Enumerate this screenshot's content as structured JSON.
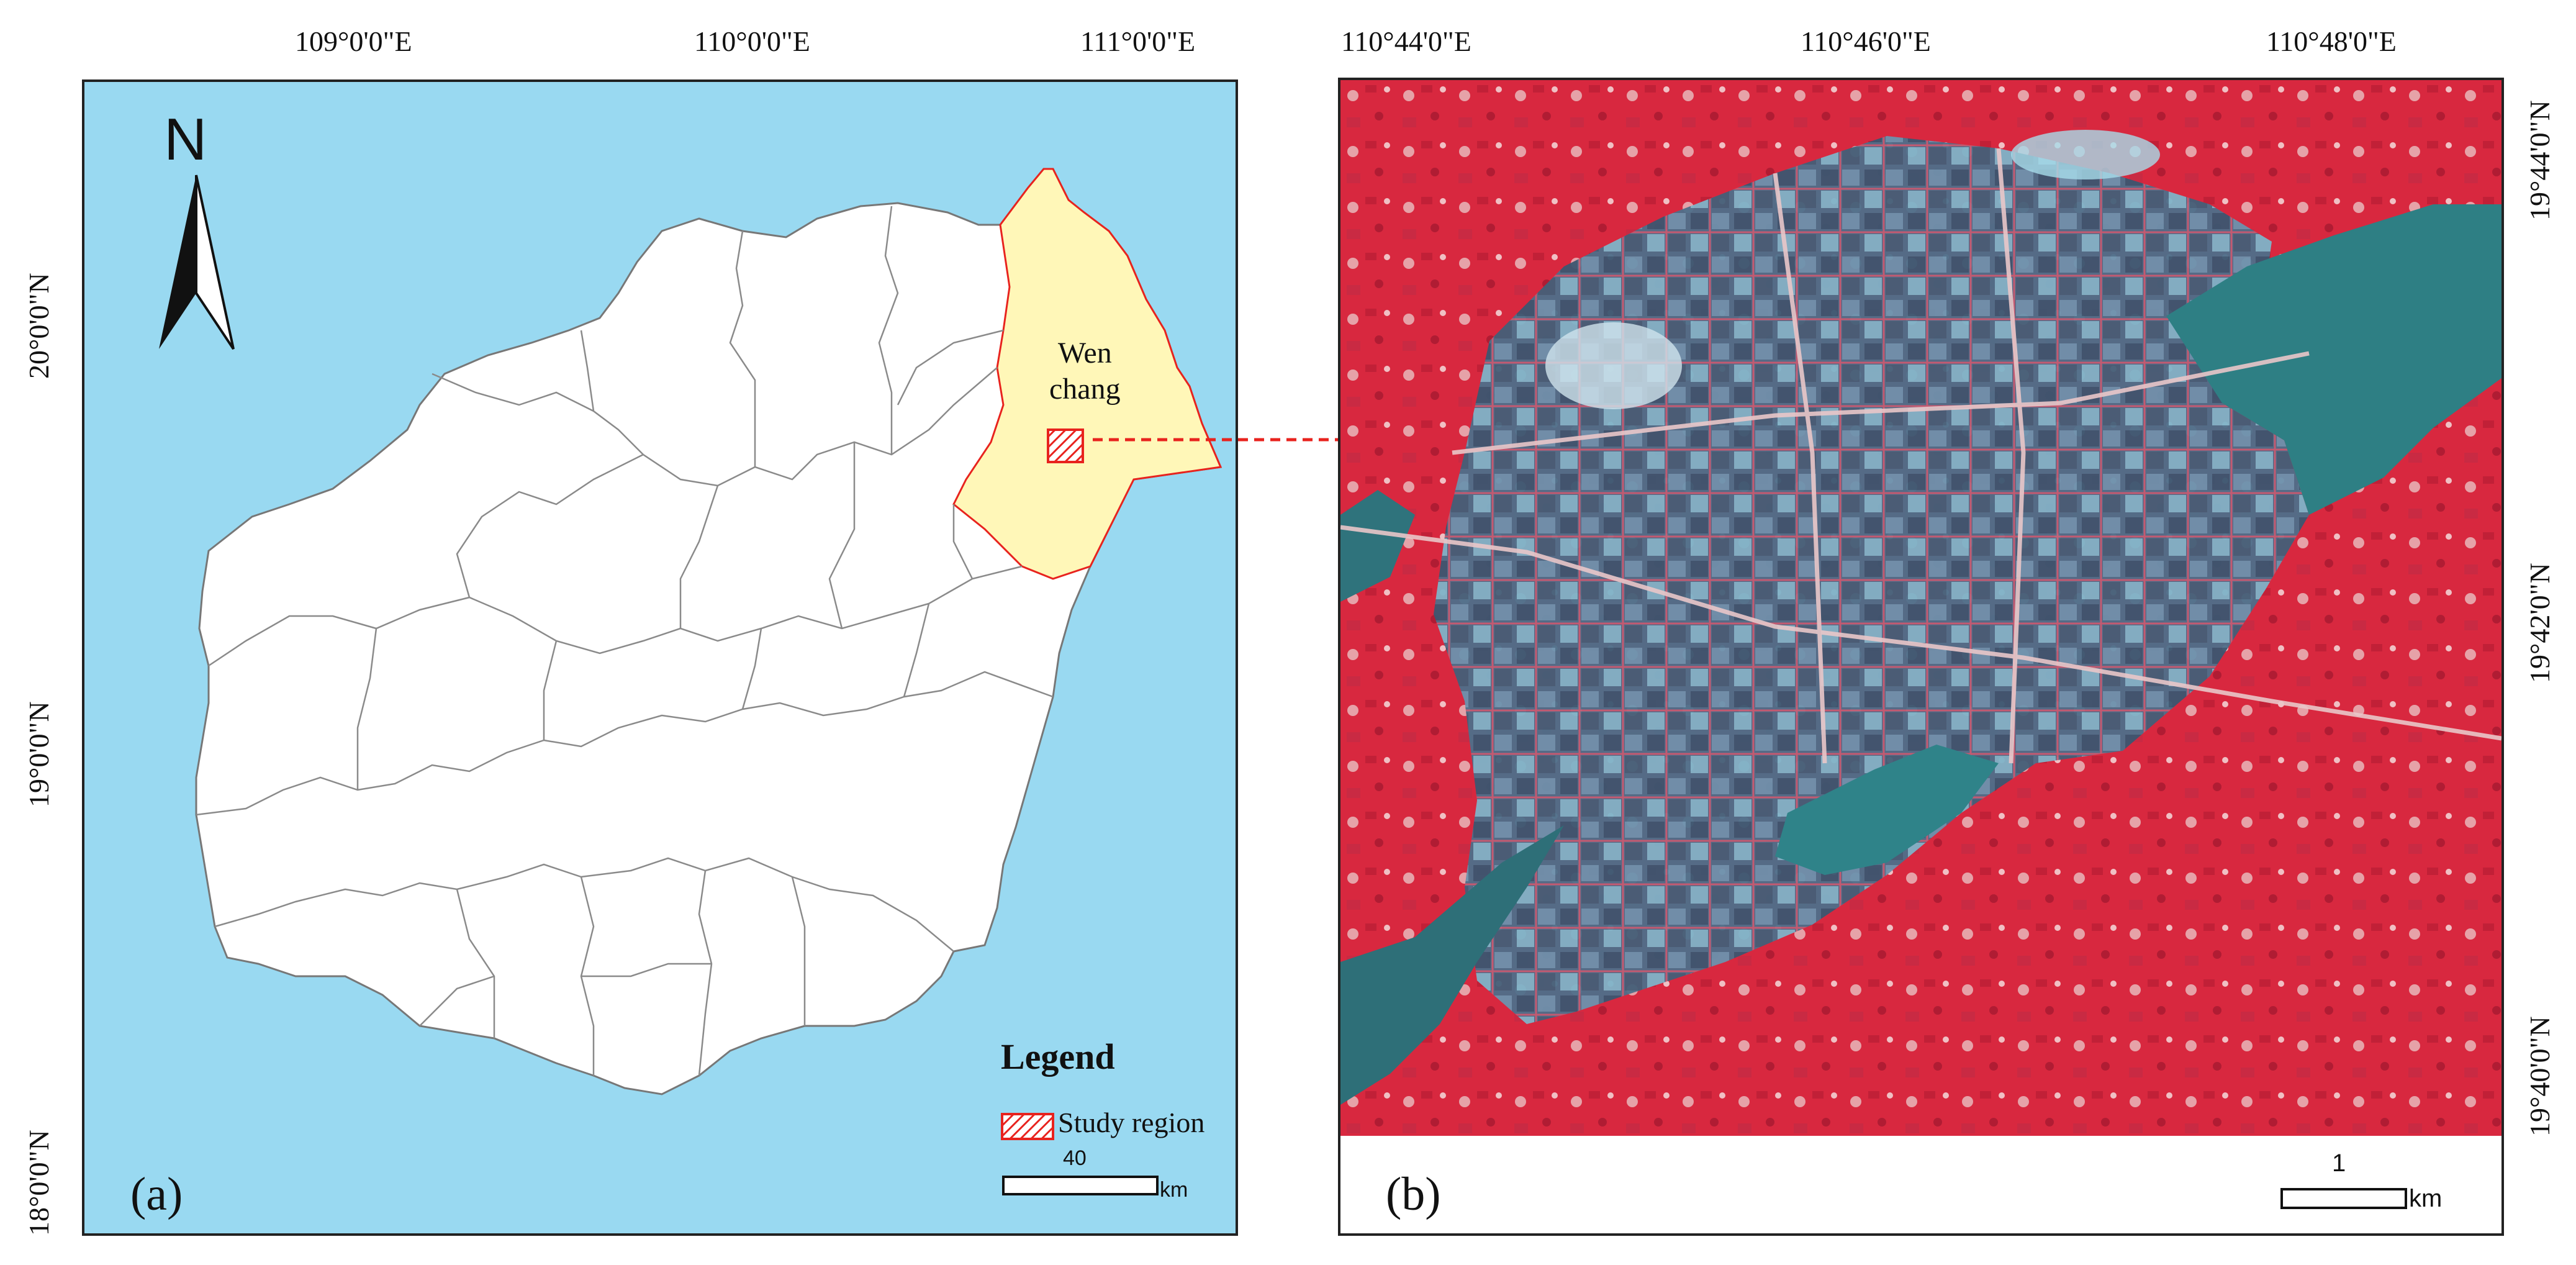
{
  "panel_a": {
    "label": "(a)",
    "top_ticks": [
      "109°0'0\"E",
      "110°0'0\"E",
      "111°0'0\"E"
    ],
    "left_ticks": [
      "20°0'0\"N",
      "19°0'0\"N",
      "18°0'0\"N"
    ],
    "north_label": "N",
    "region_label_line1": "Wen",
    "region_label_line2": "chang",
    "legend": {
      "title": "Legend",
      "item_label": "Study region",
      "scale_value": "40",
      "scale_unit": "km"
    },
    "colors": {
      "sea": "#99d9f1",
      "land": "#ffffff",
      "study_area": "#fff7b8",
      "highlight": "#e8231e"
    }
  },
  "panel_b": {
    "label": "(b)",
    "top_ticks": [
      "110°44'0\"E",
      "110°46'0\"E",
      "110°48'0\"E"
    ],
    "right_ticks": [
      "19°44'0\"N",
      "19°42'0\"N",
      "19°40'0\"N"
    ],
    "scale_value": "1",
    "scale_unit": "km",
    "colors": {
      "vegetation": "#d8283f",
      "urban": "#4e6f8a",
      "water": "#2e7f84"
    }
  }
}
